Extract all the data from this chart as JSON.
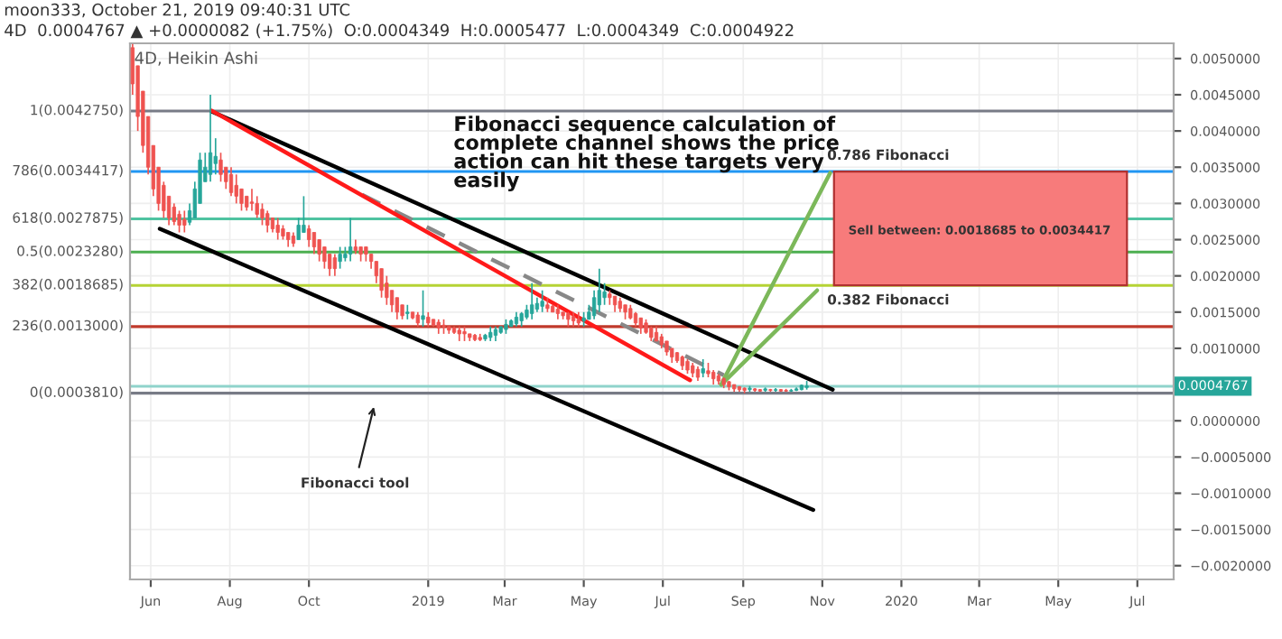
{
  "chart_data": {
    "type": "candlestick",
    "title": "moon333, October 21, 2019 09:40:31 UTC",
    "subtitle": "4D  0.0004767 ▲ +0.0000082 (+1.75%)  O:0.0004349  H:0.0005477  L:0.0004349  C:0.0004922",
    "x": [
      "2018-05-18",
      "2018-05-22",
      "2018-05-26",
      "2018-05-30",
      "2018-06-03",
      "2018-06-07",
      "2018-06-11",
      "2018-06-15",
      "2018-06-19",
      "2018-06-23",
      "2018-06-27",
      "2018-07-01",
      "2018-07-05",
      "2018-07-09",
      "2018-07-13",
      "2018-07-17",
      "2018-07-21",
      "2018-07-25",
      "2018-07-29",
      "2018-08-02",
      "2018-08-06",
      "2018-08-10",
      "2018-08-14",
      "2018-08-18",
      "2018-08-22",
      "2018-08-26",
      "2018-08-30",
      "2018-09-03",
      "2018-09-07",
      "2018-09-11",
      "2018-09-15",
      "2018-09-19",
      "2018-09-23",
      "2018-09-27",
      "2018-10-01",
      "2018-10-05",
      "2018-10-09",
      "2018-10-13",
      "2018-10-17",
      "2018-10-21",
      "2018-10-25",
      "2018-10-29",
      "2018-11-02",
      "2018-11-06",
      "2018-11-10",
      "2018-11-14",
      "2018-11-18",
      "2018-11-22",
      "2018-11-26",
      "2018-11-30",
      "2018-12-04",
      "2018-12-08",
      "2018-12-12",
      "2018-12-16",
      "2018-12-20",
      "2018-12-24",
      "2018-12-28",
      "2019-01-01",
      "2019-01-05",
      "2019-01-09",
      "2019-01-13",
      "2019-01-17",
      "2019-01-21",
      "2019-01-25",
      "2019-01-29",
      "2019-02-02",
      "2019-02-06",
      "2019-02-10",
      "2019-02-14",
      "2019-02-18",
      "2019-02-22",
      "2019-02-26",
      "2019-03-02",
      "2019-03-06",
      "2019-03-10",
      "2019-03-14",
      "2019-03-18",
      "2019-03-22",
      "2019-03-26",
      "2019-03-30",
      "2019-04-03",
      "2019-04-07",
      "2019-04-11",
      "2019-04-15",
      "2019-04-19",
      "2019-04-23",
      "2019-04-27",
      "2019-05-01",
      "2019-05-05",
      "2019-05-09",
      "2019-05-13",
      "2019-05-17",
      "2019-05-21",
      "2019-05-25",
      "2019-05-29",
      "2019-06-02",
      "2019-06-06",
      "2019-06-10",
      "2019-06-14",
      "2019-06-18",
      "2019-06-22",
      "2019-06-26",
      "2019-06-30",
      "2019-07-04",
      "2019-07-08",
      "2019-07-12",
      "2019-07-16",
      "2019-07-20",
      "2019-07-24",
      "2019-07-28",
      "2019-08-01",
      "2019-08-05",
      "2019-08-09",
      "2019-08-13",
      "2019-08-17",
      "2019-08-21",
      "2019-08-25",
      "2019-08-29",
      "2019-09-02",
      "2019-09-06",
      "2019-09-10",
      "2019-09-14",
      "2019-09-18",
      "2019-09-22",
      "2019-09-26",
      "2019-09-30",
      "2019-10-04",
      "2019-10-08",
      "2019-10-12",
      "2019-10-16",
      "2019-10-20"
    ],
    "ohlc": [
      [
        0.00515,
        0.0052,
        0.0045,
        0.00465
      ],
      [
        0.0049,
        0.0049,
        0.004,
        0.0042
      ],
      [
        0.00455,
        0.00455,
        0.0037,
        0.0038
      ],
      [
        0.0042,
        0.0042,
        0.0034,
        0.0035
      ],
      [
        0.0038,
        0.0038,
        0.0031,
        0.0032
      ],
      [
        0.0035,
        0.0035,
        0.0029,
        0.003
      ],
      [
        0.00325,
        0.0033,
        0.0028,
        0.0029
      ],
      [
        0.0031,
        0.0031,
        0.0027,
        0.0028
      ],
      [
        0.00295,
        0.003,
        0.0027,
        0.00275
      ],
      [
        0.00285,
        0.0029,
        0.0026,
        0.0027
      ],
      [
        0.00278,
        0.0029,
        0.0026,
        0.0027
      ],
      [
        0.00274,
        0.003,
        0.0027,
        0.0029
      ],
      [
        0.0028,
        0.0033,
        0.0028,
        0.0032
      ],
      [
        0.003,
        0.0037,
        0.003,
        0.0036
      ],
      [
        0.0033,
        0.0037,
        0.0033,
        0.0035
      ],
      [
        0.0034,
        0.0045,
        0.0033,
        0.0037
      ],
      [
        0.00355,
        0.0039,
        0.0034,
        0.00365
      ],
      [
        0.0036,
        0.0037,
        0.0033,
        0.0034
      ],
      [
        0.0035,
        0.0035,
        0.0032,
        0.0033
      ],
      [
        0.0034,
        0.0035,
        0.0031,
        0.00315
      ],
      [
        0.00325,
        0.0034,
        0.003,
        0.0031
      ],
      [
        0.0032,
        0.0032,
        0.0029,
        0.003
      ],
      [
        0.0031,
        0.0031,
        0.0029,
        0.00295
      ],
      [
        0.00302,
        0.0032,
        0.0029,
        0.003
      ],
      [
        0.003,
        0.0031,
        0.0028,
        0.00285
      ],
      [
        0.00292,
        0.003,
        0.0027,
        0.0028
      ],
      [
        0.00286,
        0.0029,
        0.0026,
        0.0027
      ],
      [
        0.0028,
        0.0028,
        0.0026,
        0.00265
      ],
      [
        0.0027,
        0.0028,
        0.0025,
        0.0026
      ],
      [
        0.00265,
        0.0027,
        0.0025,
        0.00255
      ],
      [
        0.0026,
        0.0026,
        0.0024,
        0.0025
      ],
      [
        0.00255,
        0.0026,
        0.0024,
        0.00245
      ],
      [
        0.0025,
        0.0028,
        0.0025,
        0.0027
      ],
      [
        0.0026,
        0.0031,
        0.0026,
        0.0027
      ],
      [
        0.00265,
        0.0027,
        0.0024,
        0.0025
      ],
      [
        0.0026,
        0.0026,
        0.0023,
        0.0024
      ],
      [
        0.0025,
        0.0025,
        0.0022,
        0.0023
      ],
      [
        0.0024,
        0.0024,
        0.0021,
        0.0022
      ],
      [
        0.0023,
        0.0023,
        0.002,
        0.0021
      ],
      [
        0.00225,
        0.0023,
        0.002,
        0.0021
      ],
      [
        0.0022,
        0.0024,
        0.0021,
        0.0023
      ],
      [
        0.00225,
        0.0024,
        0.0022,
        0.0023
      ],
      [
        0.0023,
        0.0028,
        0.0022,
        0.0024
      ],
      [
        0.0024,
        0.0025,
        0.0023,
        0.00235
      ],
      [
        0.0024,
        0.0024,
        0.0022,
        0.0023
      ],
      [
        0.0024,
        0.0024,
        0.0022,
        0.0023
      ],
      [
        0.0023,
        0.0023,
        0.0021,
        0.0022
      ],
      [
        0.0022,
        0.0022,
        0.0019,
        0.002
      ],
      [
        0.0021,
        0.0021,
        0.0017,
        0.0018
      ],
      [
        0.0019,
        0.002,
        0.0016,
        0.0017
      ],
      [
        0.0018,
        0.0018,
        0.0015,
        0.0016
      ],
      [
        0.0017,
        0.0017,
        0.0014,
        0.0015
      ],
      [
        0.0016,
        0.0016,
        0.0014,
        0.00145
      ],
      [
        0.00148,
        0.0016,
        0.0014,
        0.0015
      ],
      [
        0.0015,
        0.0015,
        0.0014,
        0.00142
      ],
      [
        0.00146,
        0.0015,
        0.0013,
        0.00135
      ],
      [
        0.0014,
        0.0018,
        0.0013,
        0.00145
      ],
      [
        0.00143,
        0.0015,
        0.0013,
        0.00135
      ],
      [
        0.0014,
        0.0014,
        0.0013,
        0.00132
      ],
      [
        0.00136,
        0.0014,
        0.0012,
        0.00128
      ],
      [
        0.00132,
        0.0014,
        0.0012,
        0.0013
      ],
      [
        0.0013,
        0.0013,
        0.0012,
        0.00125
      ],
      [
        0.00128,
        0.0013,
        0.0012,
        0.00122
      ],
      [
        0.00125,
        0.0013,
        0.0011,
        0.0012
      ],
      [
        0.00123,
        0.0013,
        0.0011,
        0.0012
      ],
      [
        0.0012,
        0.0012,
        0.0011,
        0.00115
      ],
      [
        0.00118,
        0.0012,
        0.0011,
        0.00112
      ],
      [
        0.00115,
        0.0012,
        0.0011,
        0.00112
      ],
      [
        0.00113,
        0.0012,
        0.0011,
        0.00118
      ],
      [
        0.00115,
        0.0013,
        0.0011,
        0.00122
      ],
      [
        0.00118,
        0.0013,
        0.0011,
        0.00126
      ],
      [
        0.00122,
        0.0013,
        0.0012,
        0.0013
      ],
      [
        0.00126,
        0.0014,
        0.0012,
        0.00133
      ],
      [
        0.0013,
        0.0014,
        0.0013,
        0.00138
      ],
      [
        0.00134,
        0.0015,
        0.0013,
        0.00143
      ],
      [
        0.00138,
        0.0015,
        0.0013,
        0.00148
      ],
      [
        0.00143,
        0.0016,
        0.0014,
        0.00153
      ],
      [
        0.00148,
        0.0019,
        0.0014,
        0.0016
      ],
      [
        0.00154,
        0.0017,
        0.0015,
        0.00162
      ],
      [
        0.00158,
        0.0018,
        0.0015,
        0.00165
      ],
      [
        0.0016,
        0.0017,
        0.0015,
        0.00155
      ],
      [
        0.00158,
        0.0016,
        0.0015,
        0.0015
      ],
      [
        0.00154,
        0.0016,
        0.0014,
        0.00148
      ],
      [
        0.0015,
        0.0015,
        0.0014,
        0.00145
      ],
      [
        0.00148,
        0.0015,
        0.0013,
        0.0014
      ],
      [
        0.00144,
        0.0015,
        0.0013,
        0.00138
      ],
      [
        0.0014,
        0.0015,
        0.0013,
        0.00135
      ],
      [
        0.00138,
        0.0015,
        0.0013,
        0.00142
      ],
      [
        0.0014,
        0.0016,
        0.0014,
        0.0015
      ],
      [
        0.00145,
        0.0018,
        0.0014,
        0.0017
      ],
      [
        0.0016,
        0.0021,
        0.0015,
        0.0018
      ],
      [
        0.0017,
        0.0019,
        0.0016,
        0.00178
      ],
      [
        0.00175,
        0.0018,
        0.0016,
        0.0017
      ],
      [
        0.00172,
        0.00172,
        0.0015,
        0.0016
      ],
      [
        0.00165,
        0.0017,
        0.0015,
        0.00155
      ],
      [
        0.0016,
        0.0016,
        0.0014,
        0.0015
      ],
      [
        0.00155,
        0.0016,
        0.0014,
        0.00142
      ],
      [
        0.00148,
        0.0015,
        0.0013,
        0.00135
      ],
      [
        0.00142,
        0.00142,
        0.0012,
        0.00128
      ],
      [
        0.00135,
        0.0014,
        0.0012,
        0.00122
      ],
      [
        0.00128,
        0.0013,
        0.0011,
        0.00115
      ],
      [
        0.00122,
        0.0013,
        0.0011,
        0.0011
      ],
      [
        0.00116,
        0.0012,
        0.001,
        0.00105
      ],
      [
        0.0011,
        0.0011,
        0.0009,
        0.00095
      ],
      [
        0.001,
        0.001,
        0.0008,
        0.00088
      ],
      [
        0.00094,
        0.00095,
        0.0008,
        0.00083
      ],
      [
        0.00088,
        0.0009,
        0.0007,
        0.00076
      ],
      [
        0.00082,
        0.00085,
        0.00065,
        0.0007
      ],
      [
        0.00076,
        0.0008,
        0.0006,
        0.00066
      ],
      [
        0.00071,
        0.00075,
        0.00055,
        0.0006
      ],
      [
        0.00066,
        0.00085,
        0.0006,
        0.00072
      ],
      [
        0.00069,
        0.0008,
        0.0006,
        0.00065
      ],
      [
        0.00067,
        0.0007,
        0.0005,
        0.00058
      ],
      [
        0.00062,
        0.00065,
        0.0005,
        0.00055
      ],
      [
        0.00058,
        0.0006,
        0.00045,
        0.0005
      ],
      [
        0.00054,
        0.00055,
        0.00042,
        0.00047
      ],
      [
        0.0005,
        0.0005,
        0.0004,
        0.00044
      ],
      [
        0.00047,
        0.00048,
        0.0004,
        0.00043
      ],
      [
        0.00045,
        0.00046,
        0.00038,
        0.00042
      ],
      [
        0.00043,
        0.00048,
        0.0004,
        0.00045
      ],
      [
        0.00044,
        0.00045,
        0.0004,
        0.00042
      ],
      [
        0.00043,
        0.00044,
        0.0004,
        0.00041
      ],
      [
        0.00042,
        0.00046,
        0.0004,
        0.00044
      ],
      [
        0.00043,
        0.00044,
        0.0004,
        0.00042
      ],
      [
        0.00042,
        0.00045,
        0.0004,
        0.00043
      ],
      [
        0.00043,
        0.00044,
        0.0004,
        0.00041
      ],
      [
        0.00042,
        0.00044,
        0.0004,
        0.00041
      ],
      [
        0.00041,
        0.00044,
        0.0004,
        0.00042
      ],
      [
        0.00042,
        0.00046,
        0.00041,
        0.00044
      ],
      [
        0.00043,
        0.0005,
        0.00042,
        0.00049
      ],
      [
        0.00046,
        0.00055,
        0.00043,
        0.00048
      ]
    ],
    "series": [
      {
        "type": "bar",
        "x": [
          "2020-03-02"
        ],
        "values": [
          0.00157
        ],
        "base": [
          0.00187
        ],
        "color": "#f77b7b"
      },
      {
        "type": "line",
        "x": [
          "2018-06-08",
          "2019-10-25"
        ],
        "values": [
          0.00265,
          -0.00123
        ],
        "color": "#000000",
        "line_style": "solid"
      },
      {
        "type": "line",
        "x": [
          "2018-07-18",
          "2019-11-09"
        ],
        "values": [
          0.00427,
          0.00043
        ],
        "color": "#000000",
        "line_style": "solid"
      },
      {
        "type": "line",
        "x": [
          "2018-11-11",
          "2019-08-17"
        ],
        "values": [
          0.00312,
          0.00063
        ],
        "color": "#888888",
        "line_style": "dashed"
      },
      {
        "type": "line",
        "x": [
          "2018-07-18",
          "2019-07-22"
        ],
        "values": [
          0.00428,
          0.00056
        ],
        "color": "#ff1a1a",
        "line_style": "solid"
      },
      {
        "type": "line",
        "x": [
          "2019-08-15",
          "2019-11-07"
        ],
        "values": [
          0.0005,
          0.00342
        ],
        "color": "#7cb85a",
        "line_style": "solid"
      },
      {
        "type": "line",
        "x": [
          "2019-08-15",
          "2019-10-28"
        ],
        "values": [
          0.0005,
          0.0018
        ],
        "color": "#7cb85a",
        "line_style": "solid"
      }
    ],
    "ref_lines": [
      {
        "axis": "y",
        "value": 0.004275,
        "label": "1(0.0042750)",
        "color": "#787b86",
        "line_style": "solid"
      },
      {
        "axis": "y",
        "value": 0.0034417,
        "label": "786(0.0034417)",
        "color": "#2196f3",
        "line_style": "solid"
      },
      {
        "axis": "y",
        "value": 0.0027875,
        "label": "618(0.0027875)",
        "color": "#4fc3a1",
        "line_style": "solid"
      },
      {
        "axis": "y",
        "value": 0.002328,
        "label": "0.5(0.0023280)",
        "color": "#4caf50",
        "line_style": "solid"
      },
      {
        "axis": "y",
        "value": 0.0018685,
        "label": "382(0.0018685)",
        "color": "#b5d334",
        "line_style": "solid"
      },
      {
        "axis": "y",
        "value": 0.0013,
        "label": "236(0.0013000)",
        "color": "#c0392b",
        "line_style": "solid"
      },
      {
        "axis": "y",
        "value": 0.000381,
        "label": "0(0.0003810)",
        "color": "#787b86",
        "line_style": "solid"
      },
      {
        "axis": "y",
        "value": 0.0004767,
        "label": "0.0004767",
        "color": "#8fd3cb",
        "line_style": "solid"
      }
    ],
    "annotations": [
      "Fibonacci sequence calculation of\ncomplete channel shows the price\naction can hit these targets very\neasily",
      "4D, Heikin Ashi",
      "0.786 Fibonacci",
      "0.382 Fibonacci",
      "Sell between: 0.0018685 to 0.0034417",
      {
        "text": "Fibonacci tool",
        "x": "2018-11-21",
        "y": 0.00026
      }
    ],
    "xlim": [
      "2018-05-16",
      "2020-07-29"
    ],
    "ylim": [
      -0.00219,
      0.00521
    ],
    "xticks": [
      {
        "value": "2018-06-01",
        "label": "Jun"
      },
      {
        "value": "2018-08-01",
        "label": "Aug"
      },
      {
        "value": "2018-10-01",
        "label": "Oct"
      },
      {
        "value": "2019-01-01",
        "label": "2019"
      },
      {
        "value": "2019-03-01",
        "label": "Mar"
      },
      {
        "value": "2019-05-01",
        "label": "May"
      },
      {
        "value": "2019-07-01",
        "label": "Jul"
      },
      {
        "value": "2019-09-01",
        "label": "Sep"
      },
      {
        "value": "2019-11-01",
        "label": "Nov"
      },
      {
        "value": "2020-01-01",
        "label": "2020"
      },
      {
        "value": "2020-03-01",
        "label": "Mar"
      },
      {
        "value": "2020-05-01",
        "label": "May"
      },
      {
        "value": "2020-07-01",
        "label": "Jul"
      }
    ],
    "yticks": [
      {
        "value": 0.005,
        "label": "0.0050000"
      },
      {
        "value": 0.0045,
        "label": "0.0045000"
      },
      {
        "value": 0.004,
        "label": "0.0040000"
      },
      {
        "value": 0.0035,
        "label": "0.0035000"
      },
      {
        "value": 0.003,
        "label": "0.0030000"
      },
      {
        "value": 0.0025,
        "label": "0.0025000"
      },
      {
        "value": 0.002,
        "label": "0.0020000"
      },
      {
        "value": 0.0015,
        "label": "0.0015000"
      },
      {
        "value": 0.001,
        "label": "0.0010000"
      },
      {
        "value": 0.0,
        "label": "0.0000000"
      },
      {
        "value": -0.0005,
        "label": "−0.0005000"
      },
      {
        "value": -0.001,
        "label": "−0.0010000"
      },
      {
        "value": -0.0015,
        "label": "−0.0015000"
      },
      {
        "value": -0.002,
        "label": "−0.0020000"
      }
    ],
    "grid": true,
    "legend": false
  }
}
